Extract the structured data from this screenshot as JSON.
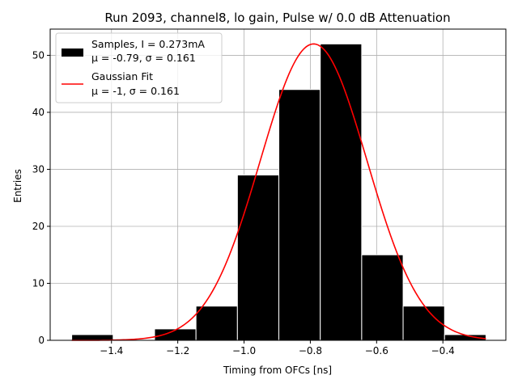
{
  "chart_data": {
    "type": "bar",
    "title": "Run 2093, channel8, lo gain, Pulse w/ 0.0 dB Attenuation",
    "xlabel": "Timing from OFCs [ns]",
    "ylabel": "Entries",
    "xlim": [
      -1.585,
      -0.21
    ],
    "ylim": [
      0,
      54.6
    ],
    "xticks": [
      -1.4,
      -1.2,
      -1.0,
      -0.8,
      -0.6,
      -0.4
    ],
    "xtick_labels": [
      "−1.4",
      "−1.2",
      "−1.0",
      "−0.8",
      "−0.6",
      "−0.4"
    ],
    "yticks": [
      0,
      10,
      20,
      30,
      40,
      50
    ],
    "ytick_labels": [
      "0",
      "10",
      "20",
      "30",
      "40",
      "50"
    ],
    "grid": true,
    "legend_position": "top-left",
    "histogram": {
      "name": "Samples",
      "bin_edges": [
        -1.52,
        -1.395,
        -1.27,
        -1.145,
        -1.02,
        -0.895,
        -0.77,
        -0.645,
        -0.52,
        -0.395,
        -0.27
      ],
      "counts": [
        1,
        0,
        2,
        6,
        29,
        44,
        52,
        15,
        6,
        1
      ],
      "color": "#000000"
    },
    "fit": {
      "name": "Gaussian Fit",
      "mean": -0.79,
      "sigma": 0.161,
      "peak": 52,
      "x_range": [
        -1.52,
        -0.27
      ],
      "color": "#ff0000"
    },
    "legend": [
      {
        "line1": "Samples, I = 0.273mA",
        "line2": "μ = -0.79, σ = 0.161"
      },
      {
        "line1": "Gaussian Fit",
        "line2": "μ = -1, σ = 0.161"
      }
    ]
  }
}
